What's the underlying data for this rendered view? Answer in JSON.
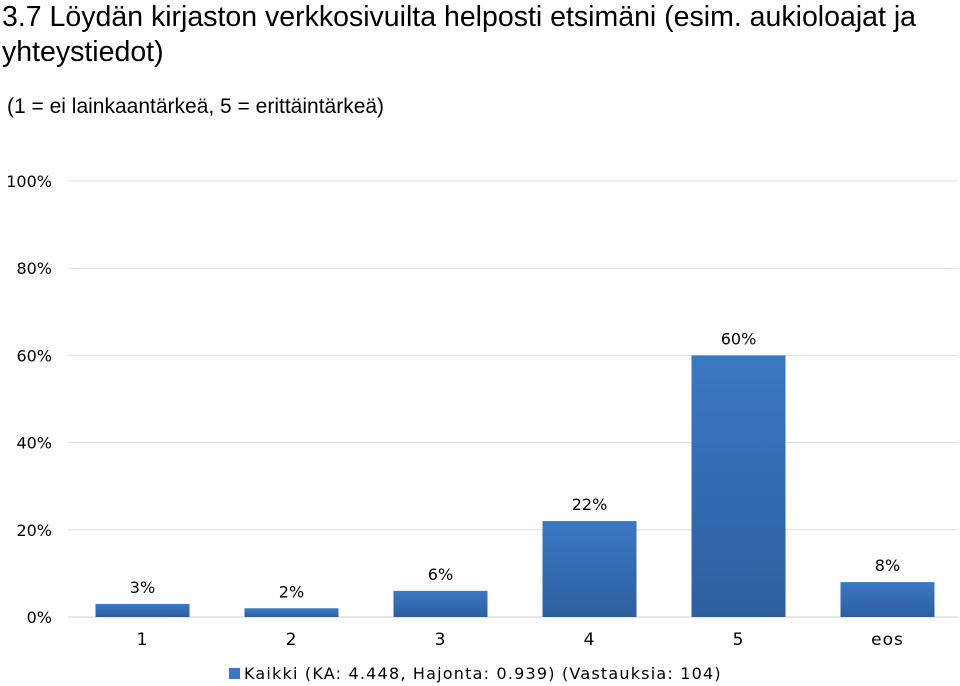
{
  "header": {
    "title": "3.7 Löydän kirjaston verkkosivuilta helposti etsimäni (esim. aukioloajat ja yhteystiedot)",
    "scale_note": "(1 = ei lainkaantärkeä, 5 = erittäintärkeä)"
  },
  "chart_data": {
    "type": "bar",
    "categories": [
      "1",
      "2",
      "3",
      "4",
      "5",
      "eos"
    ],
    "series": [
      {
        "name": "Kaikki (KA: 4.448, Hajonta: 0.939) (Vastauksia: 104)",
        "values": [
          3,
          2,
          6,
          22,
          60,
          8
        ],
        "labels": [
          "3%",
          "2%",
          "6%",
          "22%",
          "60%",
          "8%"
        ]
      }
    ],
    "ylim": [
      0,
      100
    ],
    "yticks": [
      0,
      20,
      40,
      60,
      80,
      100
    ],
    "ytick_labels": [
      "0%",
      "20%",
      "40%",
      "60%",
      "80%",
      "100%"
    ],
    "grid": true,
    "legend_position": "bottom",
    "colors": {
      "bar": "#3b78c4",
      "bar_dark": "#2d5f9e",
      "grid": "#d9e1e8",
      "axis": "#c8d0d8"
    }
  }
}
